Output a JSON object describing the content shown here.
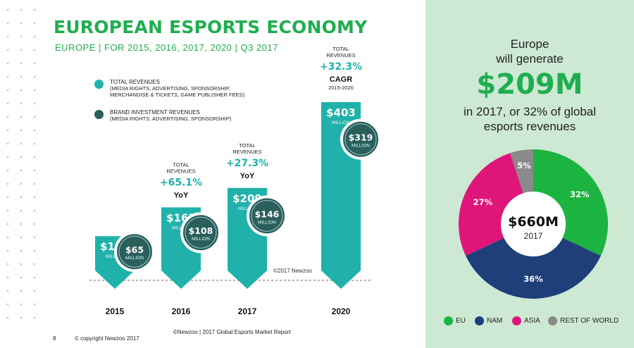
{
  "title": "EUROPEAN ESPORTS ECONOMY",
  "subtitle": "EUROPE | FOR 2015, 2016, 2017, 2020 | Q3 2017",
  "legend": {
    "total": {
      "title": "TOTAL REVENUES",
      "line1": "(MEDIA RIGHTS, ADVERTISING, SPONSORSHIP,",
      "line2": "MERCHANDISE & TICKETS, GAME PUBLISHER FEES)",
      "color": "#20b2aa"
    },
    "brand": {
      "title": "BRAND INVESTMENT REVENUES",
      "line1": "(MEDIA RIGHTS, ADVERTISING, SPONSORSHIP)",
      "color": "#2a5f5c"
    }
  },
  "chart_data": [
    {
      "type": "bar",
      "categories": [
        "2015",
        "2016",
        "2017",
        "2020"
      ],
      "series": [
        {
          "name": "TOTAL REVENUES",
          "values": [
            100,
            165,
            209,
            403
          ],
          "labels": [
            "$100",
            "$165",
            "$209",
            "$403"
          ]
        },
        {
          "name": "BRAND INVESTMENT REVENUES",
          "values": [
            65,
            108,
            146,
            319
          ],
          "labels": [
            "$65",
            "$108",
            "$146",
            "$319"
          ]
        }
      ],
      "unit_label": "MILLION",
      "growth_annotations": [
        null,
        {
          "line1": "TOTAL",
          "line2": "REVENUES",
          "pct": "+65.1%",
          "tag": "YoY"
        },
        {
          "line1": "TOTAL",
          "line2": "REVENUES",
          "pct": "+27.3%",
          "tag": "YoY"
        },
        {
          "line1": "TOTAL",
          "line2": "REVENUES",
          "pct": "+32.3%",
          "tag": "CAGR",
          "sub": "2015-2020"
        }
      ],
      "colors": {
        "total": "#20b2aa",
        "brand": "#2a5f5c"
      },
      "watermark": "©2017 Newzoo"
    },
    {
      "type": "pie",
      "categories": [
        "EU",
        "NAM",
        "ASIA",
        "REST OF WORLD"
      ],
      "values": [
        32,
        36,
        27,
        5
      ],
      "labels": [
        "32%",
        "36%",
        "27%",
        "5%"
      ],
      "colors": [
        "#1db340",
        "#1e3f7a",
        "#e0157a",
        "#8a8a8a"
      ],
      "center_value": "$660M",
      "center_year": "2017"
    }
  ],
  "right_panel": {
    "line1": "Europe",
    "line2": "will generate",
    "big": "$209M",
    "line3": "in 2017, or 32% of global",
    "line4": "esports revenues"
  },
  "footer": {
    "page": "8",
    "copyright": "© copyright Newzoo 2017",
    "report": "©Newzoo | 2017 Global Esports Market Report"
  }
}
